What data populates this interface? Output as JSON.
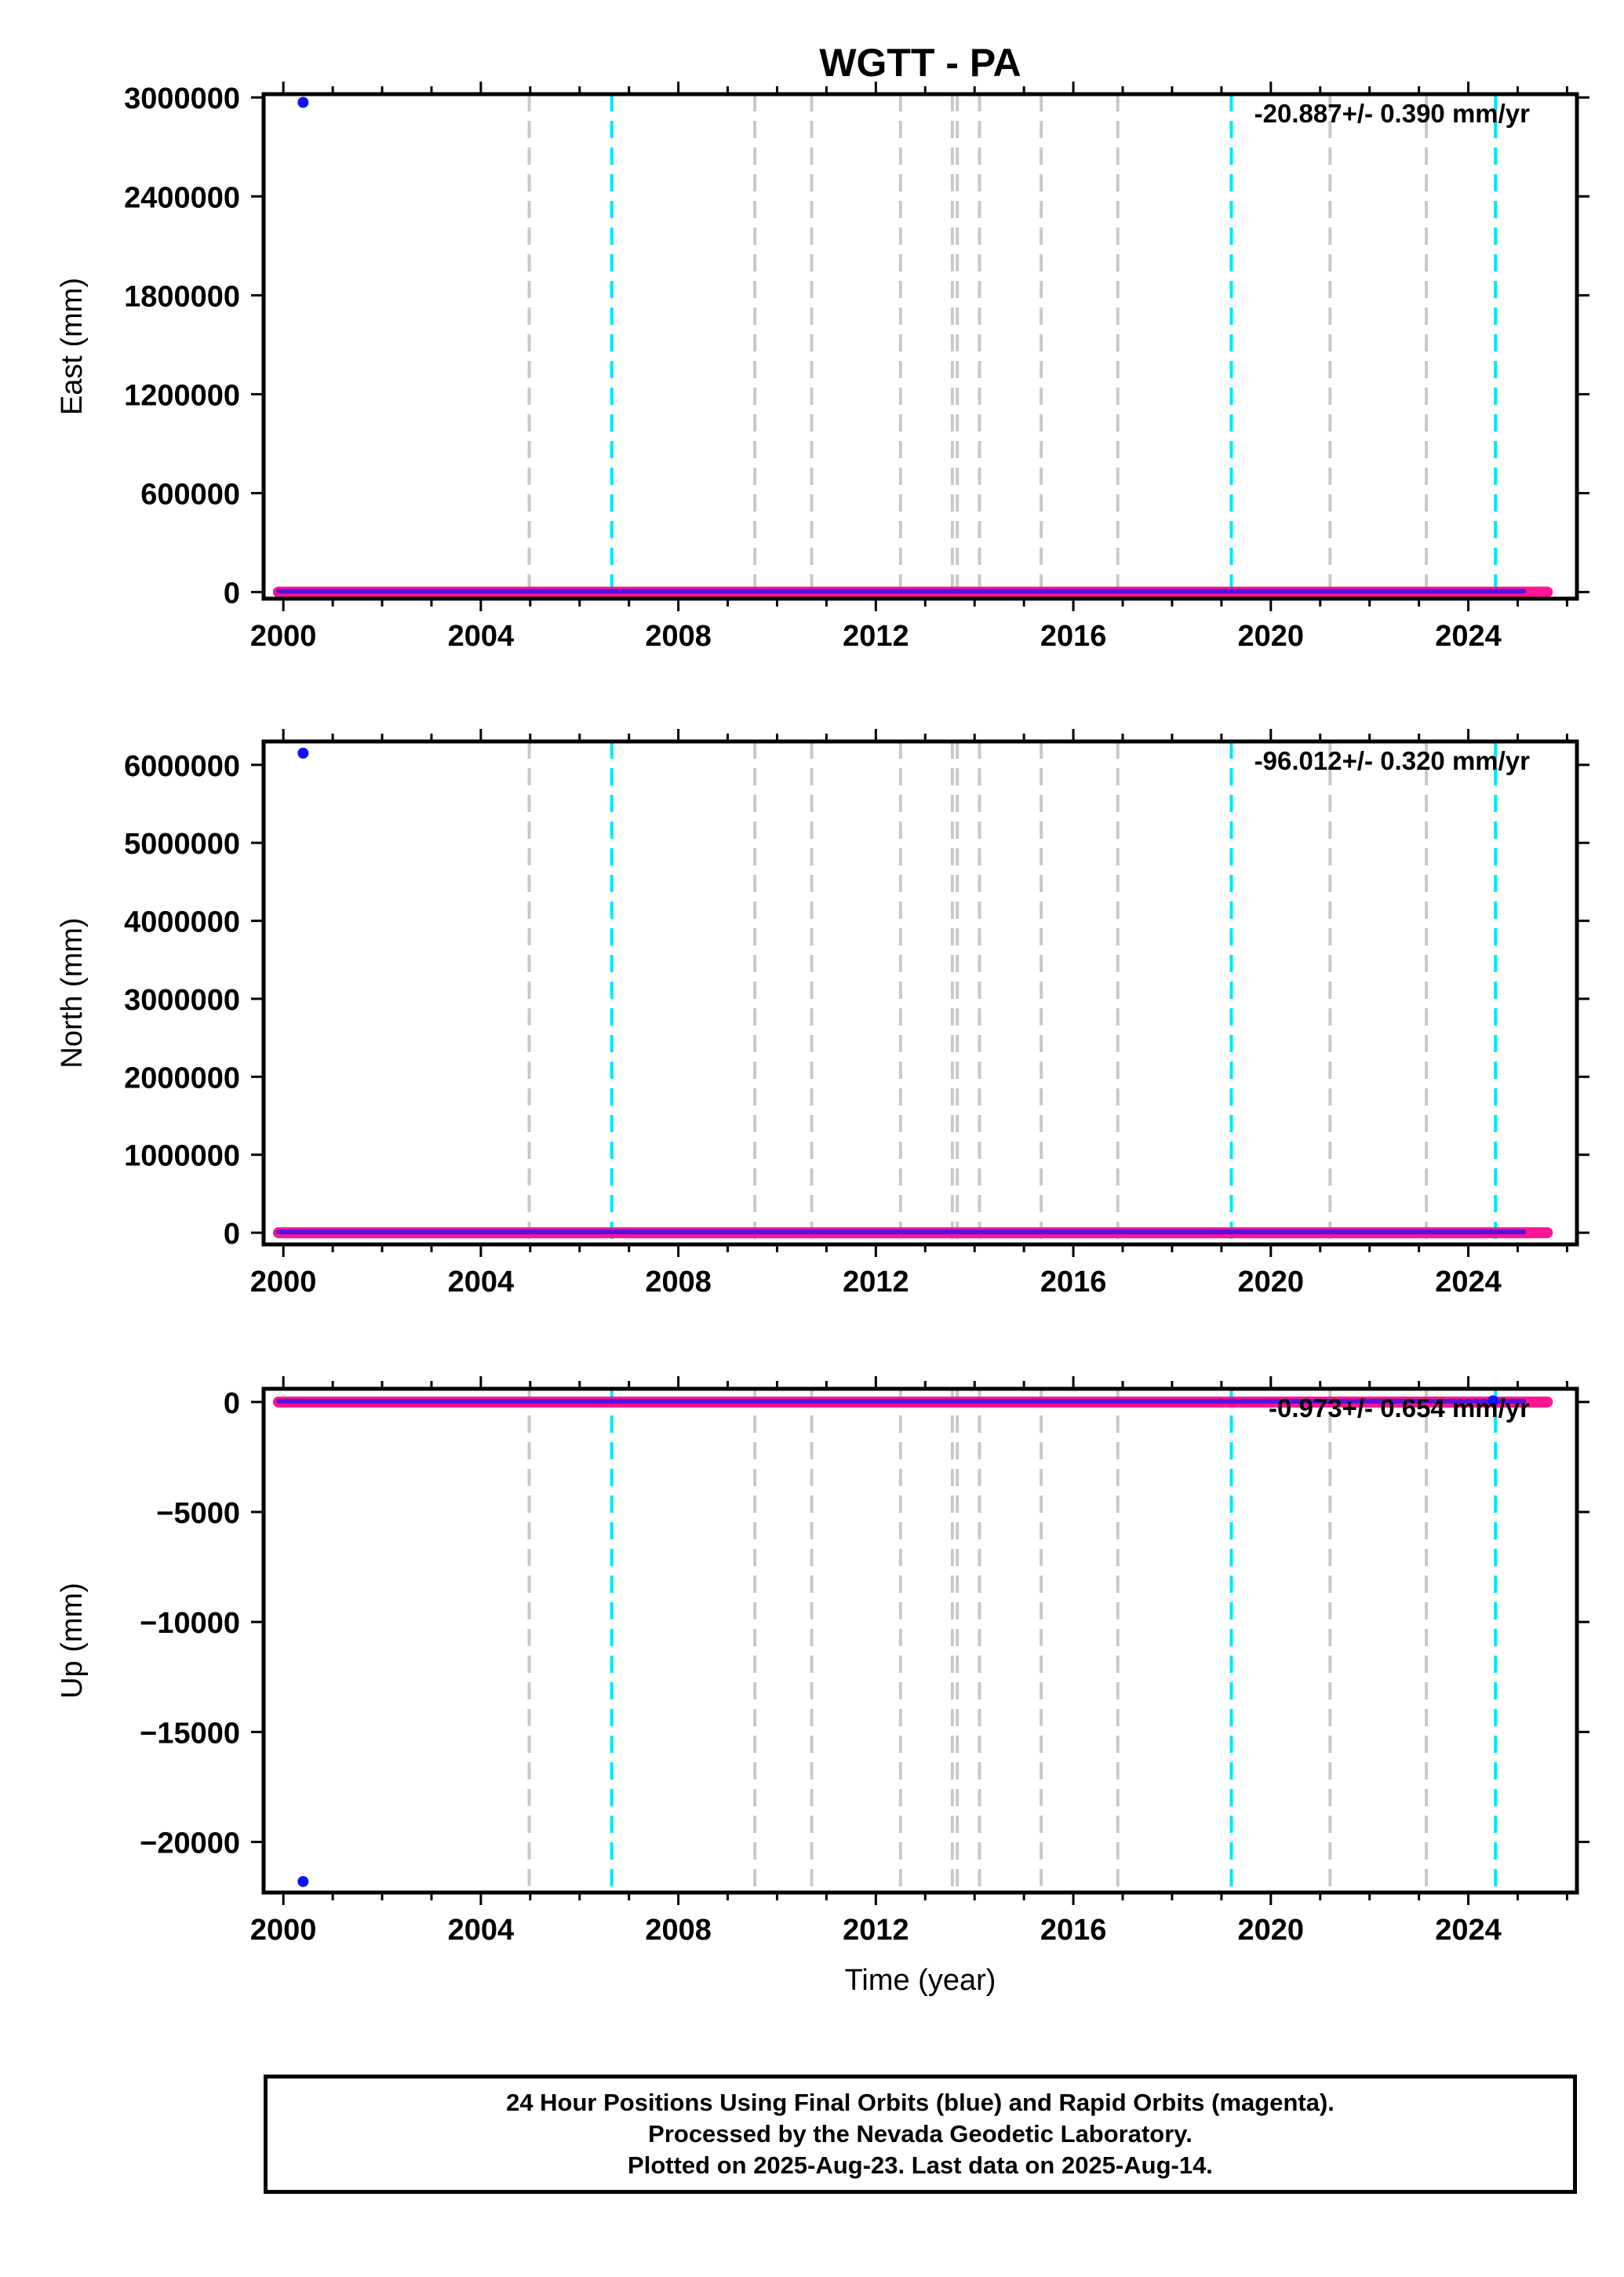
{
  "title": "WGTT - PA",
  "xlabel": "Time (year)",
  "colors": {
    "final": "#1010ff",
    "rapid": "#ff1493",
    "equipment_line": "#c8c8c8",
    "offset_line": "#00e5ff",
    "frame": "#000000"
  },
  "chart_data": [
    {
      "type": "scatter",
      "ylabel": "East (mm)",
      "rate_text": "-20.887+/- 0.390 mm/yr",
      "xlim": [
        1999.6,
        2026.2
      ],
      "ylim": [
        -40000,
        3020000
      ],
      "x_ticks": [
        2000,
        2004,
        2008,
        2012,
        2016,
        2020,
        2024
      ],
      "y_ticks": [
        0,
        600000,
        1200000,
        1800000,
        2400000,
        3000000
      ],
      "y_tick_labels": [
        "0",
        "600000",
        "1200000",
        "1800000",
        "2400000",
        "3000000"
      ],
      "series": [
        {
          "name": "Final Orbits",
          "x": [
            2000.4
          ],
          "y": [
            2970000
          ]
        }
      ],
      "baseline": {
        "x_start": 1999.9,
        "x_end": 2025.6,
        "y": 0
      }
    },
    {
      "type": "scatter",
      "ylabel": "North (mm)",
      "rate_text": "-96.012+/- 0.320 mm/yr",
      "xlim": [
        1999.6,
        2026.2
      ],
      "ylim": [
        -150000,
        6300000
      ],
      "x_ticks": [
        2000,
        2004,
        2008,
        2012,
        2016,
        2020,
        2024
      ],
      "y_ticks": [
        0,
        1000000,
        2000000,
        3000000,
        4000000,
        5000000,
        6000000
      ],
      "y_tick_labels": [
        "0",
        "1000000",
        "2000000",
        "3000000",
        "4000000",
        "5000000",
        "6000000"
      ],
      "series": [
        {
          "name": "Final Orbits",
          "x": [
            2000.4
          ],
          "y": [
            6150000
          ]
        }
      ],
      "baseline": {
        "x_start": 1999.9,
        "x_end": 2025.6,
        "y": 0
      }
    },
    {
      "type": "scatter",
      "ylabel": "Up (mm)",
      "rate_text": "-0.973+/- 0.654 mm/yr",
      "xlim": [
        1999.6,
        2026.2
      ],
      "ylim": [
        -22300,
        600
      ],
      "x_ticks": [
        2000,
        2004,
        2008,
        2012,
        2016,
        2020,
        2024
      ],
      "y_ticks": [
        0,
        -5000,
        -10000,
        -15000,
        -20000
      ],
      "y_tick_labels": [
        "0",
        "−5000",
        "−10000",
        "−15000",
        "−20000"
      ],
      "series": [
        {
          "name": "Final Orbits",
          "x": [
            2000.4,
            2024.5
          ],
          "y": [
            -21800,
            50
          ]
        }
      ],
      "baseline": {
        "x_start": 1999.9,
        "x_end": 2025.6,
        "y": 0
      }
    }
  ],
  "equipment_changes": [
    2004.98,
    2009.55,
    2010.7,
    2012.5,
    2013.55,
    2013.65,
    2014.1,
    2015.35,
    2016.9,
    2021.2,
    2023.15
  ],
  "offsets": [
    2006.65,
    2019.2,
    2024.55
  ],
  "footer": {
    "line1": "24 Hour Positions Using Final Orbits (blue) and Rapid Orbits (magenta).",
    "line2": "Processed by the Nevada Geodetic Laboratory.",
    "line3": "Plotted on 2025-Aug-23. Last data on 2025-Aug-14."
  }
}
